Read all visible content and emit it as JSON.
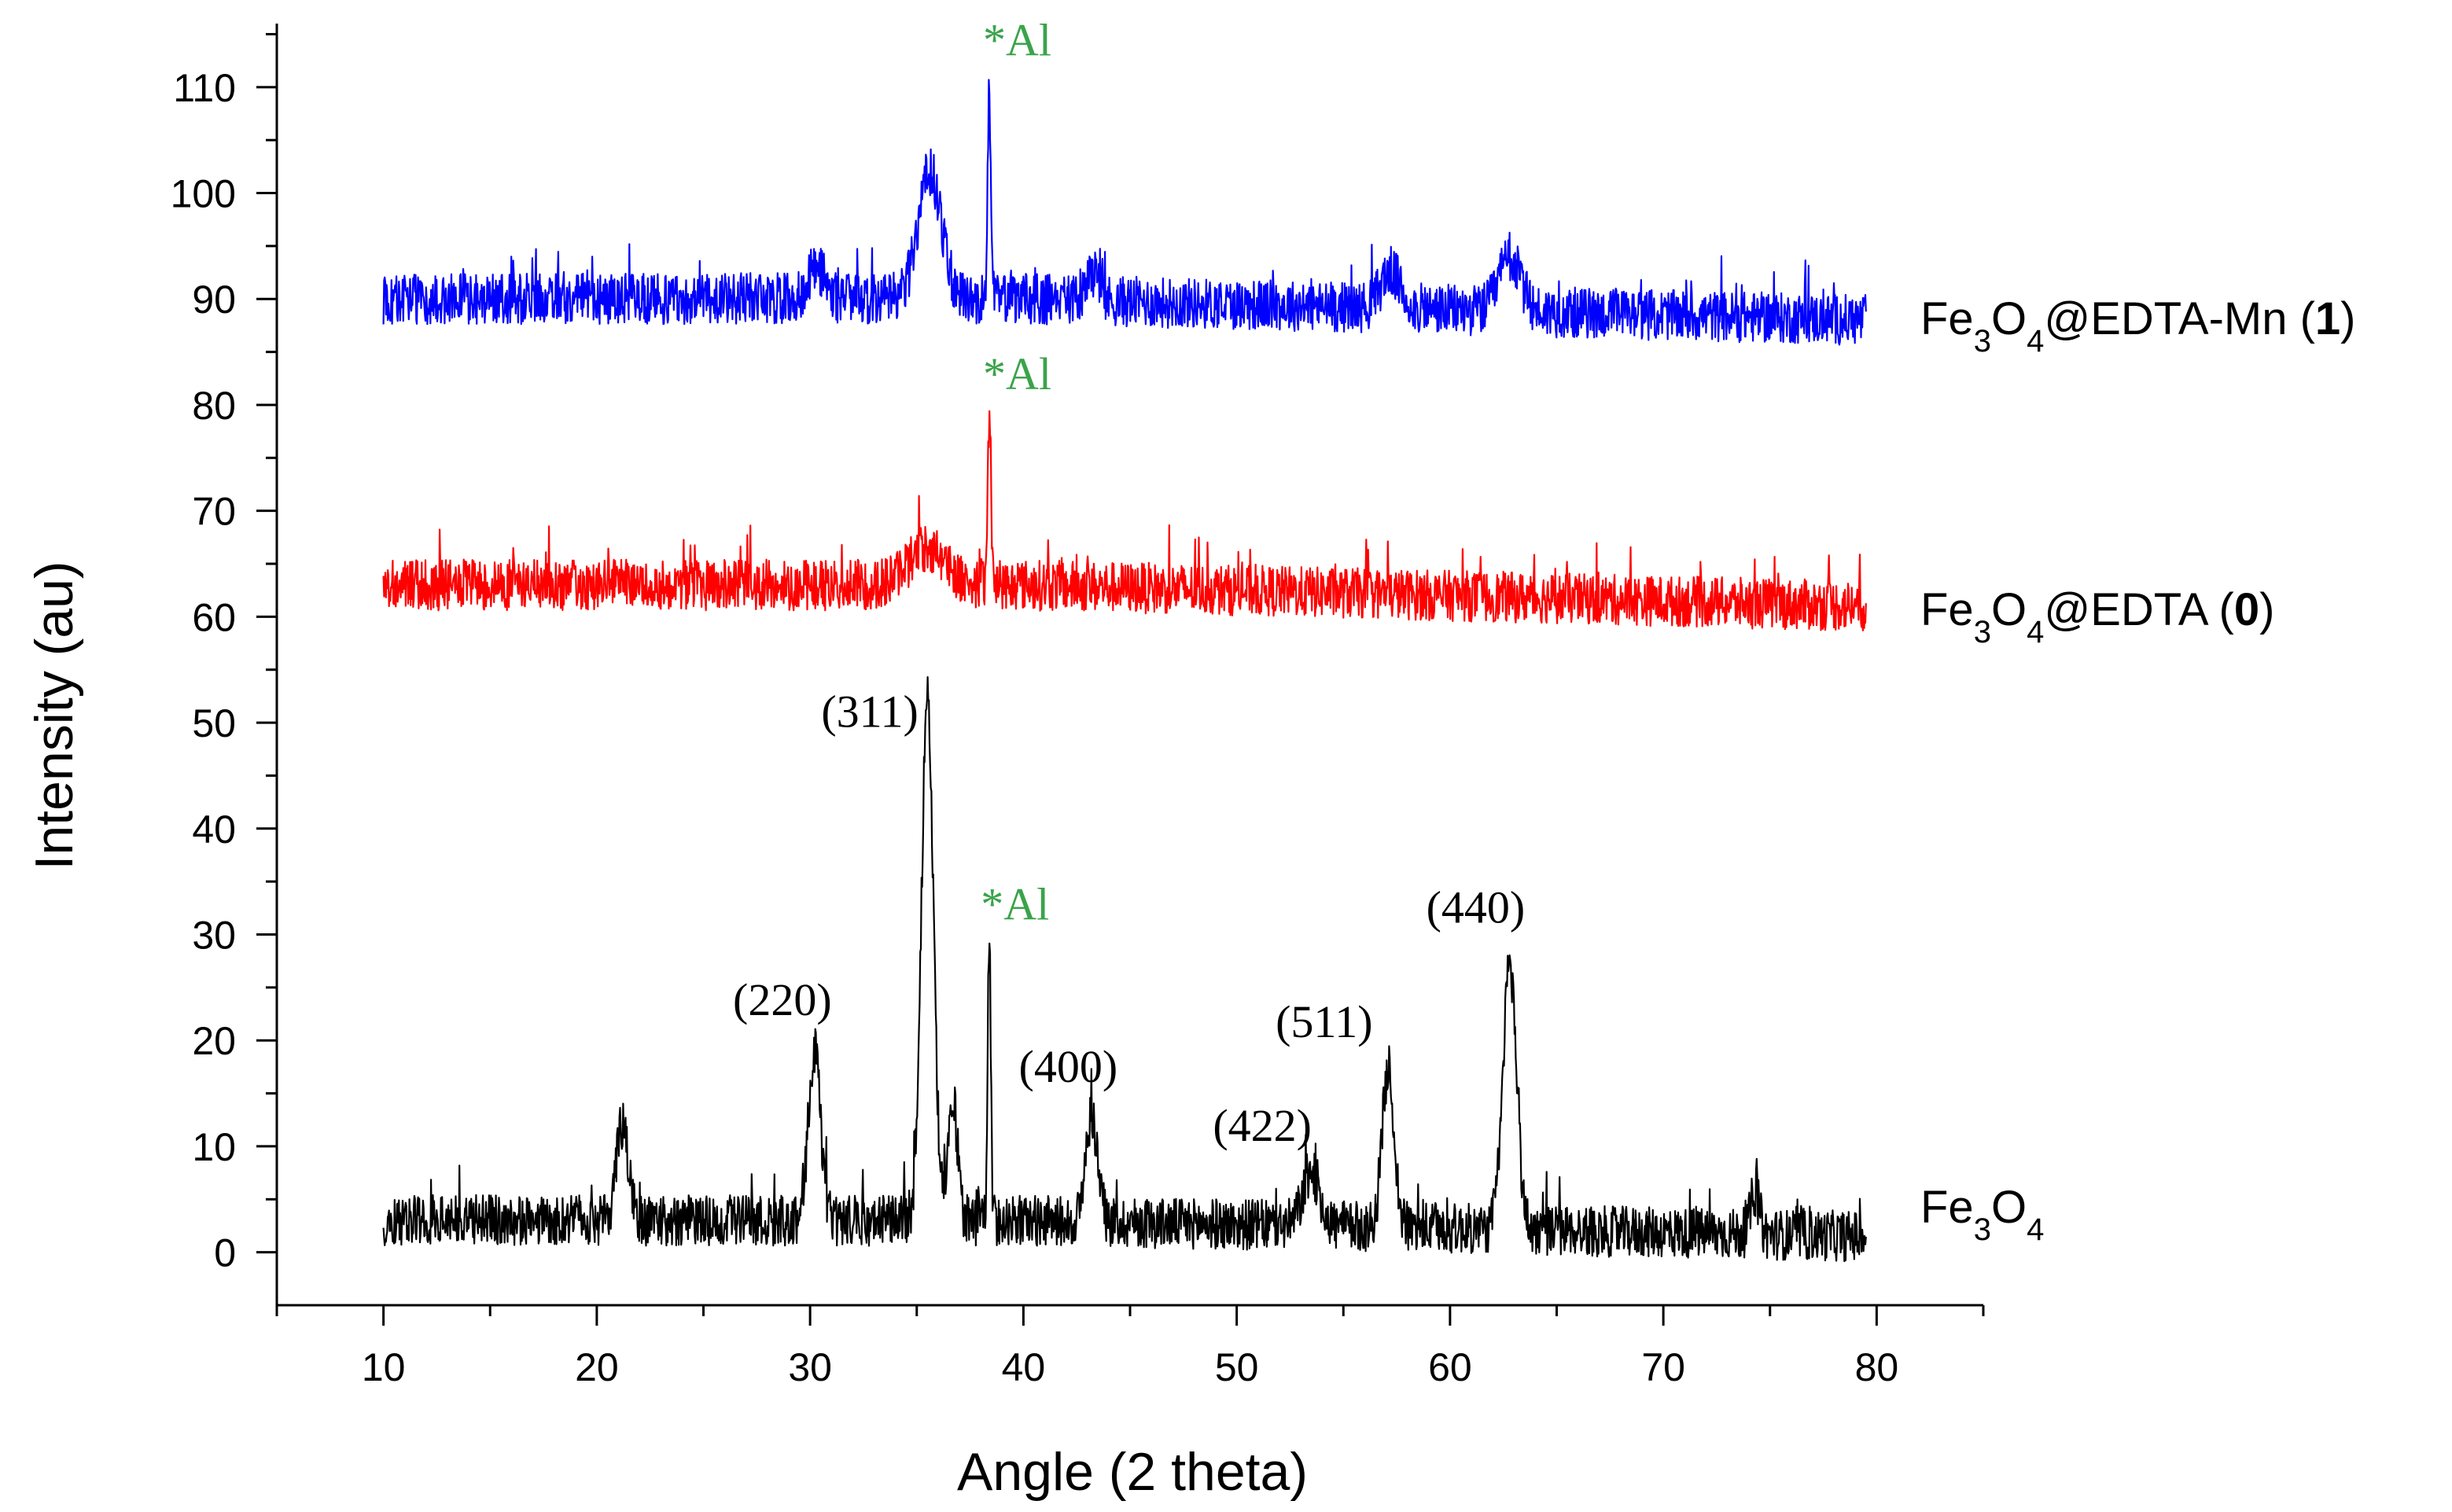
{
  "chart_data": {
    "type": "line",
    "title": "",
    "xlabel": "Angle (2 theta)",
    "ylabel": "Intensity (au)",
    "xlim": [
      5,
      85
    ],
    "ylim": [
      -5,
      116
    ],
    "x_ticks": [
      10,
      20,
      30,
      40,
      50,
      60,
      70,
      80
    ],
    "y_ticks": [
      0,
      10,
      20,
      30,
      40,
      50,
      60,
      70,
      80,
      90,
      100,
      110
    ],
    "x_range": [
      10,
      79.5
    ],
    "series": [
      {
        "key": "fe3o4",
        "name_main": "Fe",
        "name_sub1": "3",
        "name_mid": "O",
        "name_sub2": "4",
        "name_tail": "",
        "name_bold": "",
        "name_close": "",
        "color": "#000000",
        "baseline": 3.0,
        "noise": 2.4,
        "end_baseline": 1.5,
        "peaks": [
          {
            "x": 21.2,
            "h": 9,
            "w": 0.28
          },
          {
            "x": 30.2,
            "h": 16,
            "w": 0.28
          },
          {
            "x": 35.5,
            "h": 50,
            "w": 0.28
          },
          {
            "x": 36.7,
            "h": 11,
            "w": 0.22
          },
          {
            "x": 38.4,
            "h": 27,
            "w": 0.07
          },
          {
            "x": 43.2,
            "h": 10,
            "w": 0.28
          },
          {
            "x": 53.5,
            "h": 5,
            "w": 0.4
          },
          {
            "x": 57.1,
            "h": 15,
            "w": 0.28
          },
          {
            "x": 62.8,
            "h": 25,
            "w": 0.32
          },
          {
            "x": 74.3,
            "h": 4,
            "w": 0.2
          }
        ]
      },
      {
        "key": "fe3o4_edta",
        "name_main": "Fe",
        "name_sub1": "3",
        "name_mid": "O",
        "name_sub2": "4",
        "name_tail": "@EDTA (",
        "name_bold": "0",
        "name_close": ")",
        "color": "#ff0000",
        "baseline": 63,
        "noise": 2.4,
        "end_baseline": 61,
        "peaks": [
          {
            "x": 35.5,
            "h": 3.5,
            "w": 0.9
          },
          {
            "x": 38.4,
            "h": 16,
            "w": 0.07
          }
        ]
      },
      {
        "key": "fe3o4_edta_mn",
        "name_main": "Fe",
        "name_sub1": "3",
        "name_mid": "O",
        "name_sub2": "4",
        "name_tail": "@EDTA-Mn (",
        "name_bold": "1",
        "name_close": ")",
        "color": "#0000ff",
        "baseline": 90,
        "noise": 2.4,
        "end_baseline": 88,
        "peaks": [
          {
            "x": 30.3,
            "h": 3,
            "w": 0.4
          },
          {
            "x": 35.6,
            "h": 12,
            "w": 0.55
          },
          {
            "x": 38.4,
            "h": 20,
            "w": 0.07
          },
          {
            "x": 43.2,
            "h": 2.5,
            "w": 0.3
          },
          {
            "x": 57.2,
            "h": 3.5,
            "w": 0.45
          },
          {
            "x": 62.8,
            "h": 5,
            "w": 0.5
          }
        ]
      }
    ],
    "annotations": {
      "miller": [
        {
          "text": "(220)",
          "x": 28.7,
          "y": 22.4
        },
        {
          "text": "(311)",
          "x": 32.8,
          "y": 49.6
        },
        {
          "text": "(400)",
          "x": 42.1,
          "y": 16.1
        },
        {
          "text": "(422)",
          "x": 51.2,
          "y": 10.5
        },
        {
          "text": "(511)",
          "x": 54.1,
          "y": 20.3
        },
        {
          "text": "(440)",
          "x": 61.2,
          "y": 31.1
        }
      ],
      "al_marks": [
        {
          "text": "*Al",
          "x": 38.4,
          "y": 113.0
        },
        {
          "text": "*Al",
          "x": 38.4,
          "y": 81.5
        },
        {
          "text": "*Al",
          "x": 38.3,
          "y": 31.4
        }
      ],
      "al_color": "#3aa34a"
    }
  }
}
